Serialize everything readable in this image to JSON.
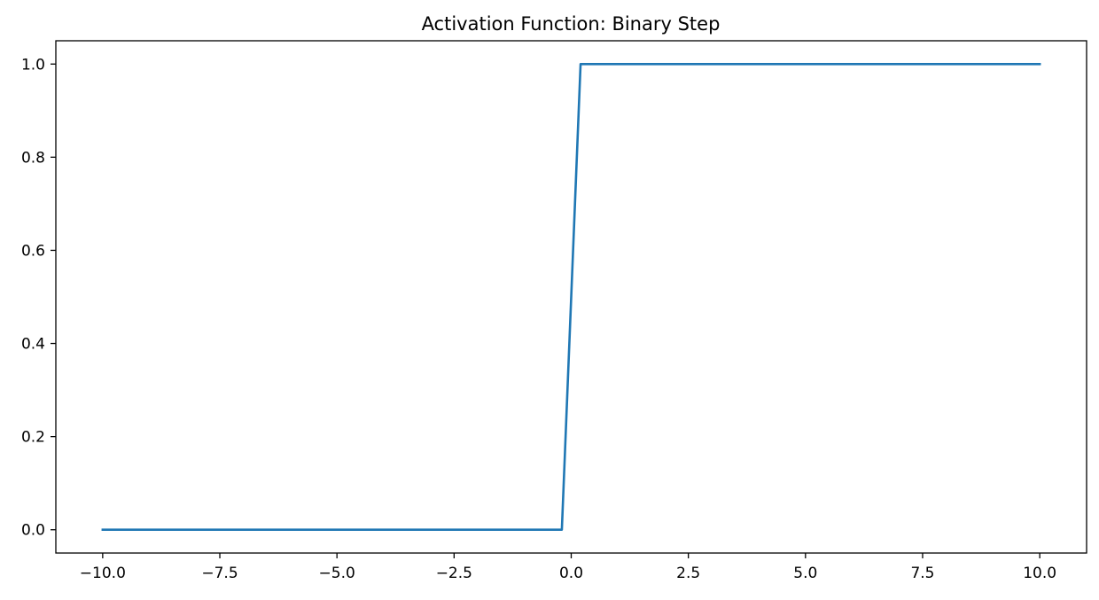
{
  "chart_data": {
    "type": "line",
    "title": "Activation Function: Binary Step",
    "xlabel": "",
    "ylabel": "",
    "xlim": [
      -11.0,
      11.0
    ],
    "ylim": [
      -0.05,
      1.05
    ],
    "grid": false,
    "x_ticks": [
      -10.0,
      -7.5,
      -5.0,
      -2.5,
      0.0,
      2.5,
      5.0,
      7.5,
      10.0
    ],
    "x_tick_labels": [
      "−10.0",
      "−7.5",
      "−5.0",
      "−2.5",
      "0.0",
      "2.5",
      "5.0",
      "7.5",
      "10.0"
    ],
    "y_ticks": [
      0.0,
      0.2,
      0.4,
      0.6,
      0.8,
      1.0
    ],
    "y_tick_labels": [
      "0.0",
      "0.2",
      "0.4",
      "0.6",
      "0.8",
      "1.0"
    ],
    "series": [
      {
        "color": "#1f77b4",
        "x": [
          -10.0,
          -0.2,
          0.2,
          10.0
        ],
        "y": [
          0.0,
          0.0,
          1.0,
          1.0
        ]
      }
    ]
  }
}
